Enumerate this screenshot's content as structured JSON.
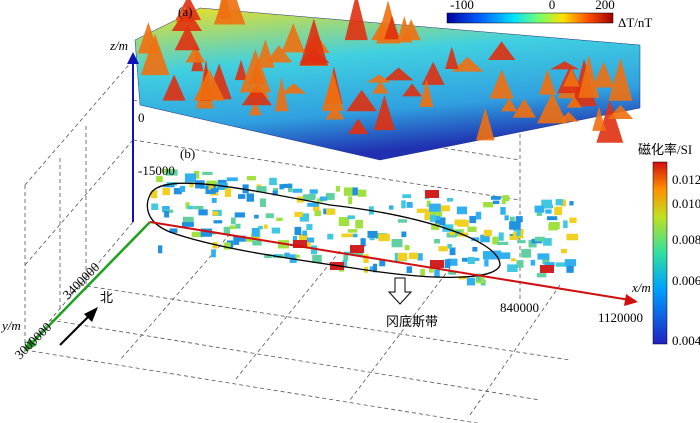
{
  "panel_a": {
    "label": "(a)",
    "colorbar": {
      "ticks": [
        "-100",
        "0",
        "200"
      ],
      "title": "ΔT/nT"
    }
  },
  "panel_b": {
    "label": "(b)",
    "colorbar": {
      "title": "磁化率/SI",
      "ticks": [
        "0.012",
        "0.010",
        "0.008",
        "0.006",
        "0.004"
      ]
    },
    "annotation": "冈底斯带"
  },
  "axes": {
    "z": {
      "title": "z/m",
      "ticks": [
        "0",
        "-15000"
      ]
    },
    "y": {
      "title": "y/m",
      "ticks": [
        "3000000",
        "3400000"
      ]
    },
    "x": {
      "title": "x/m",
      "ticks": [
        "840000",
        "1120000"
      ]
    },
    "north": "北"
  }
}
